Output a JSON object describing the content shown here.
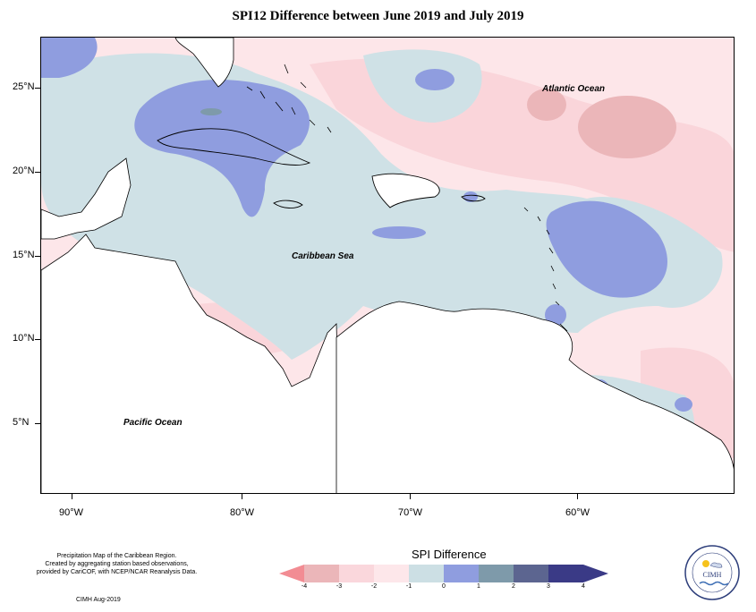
{
  "title": "SPI12 Difference between June 2019 and July 2019",
  "map": {
    "latitude_labels": [
      "25°N",
      "20°N",
      "15°N",
      "10°N",
      "5°N"
    ],
    "longitude_labels": [
      "90°W",
      "80°W",
      "70°W",
      "60°W"
    ],
    "places": {
      "atlantic": "Atlantic Ocean",
      "caribbean": "Caribbean Sea",
      "pacific": "Pacific Ocean"
    }
  },
  "legend": {
    "title": "SPI Difference",
    "ticks": [
      "-4",
      "-3",
      "-2",
      "-1",
      "0",
      "1",
      "2",
      "3",
      "4"
    ],
    "colors": [
      "#f28c93",
      "#ebb6b9",
      "#fad7dc",
      "#fde7ea",
      "#ccdfe4",
      "#8f9ddf",
      "#7e9aaa",
      "#5c6590",
      "#3a3a86"
    ]
  },
  "credits": {
    "line1": "Precipitation Map of the Caribbean Region.",
    "line2": "Created by aggregating station based observations,",
    "line3": "provided by CariCOF, with NCEP/NCAR Reanalysis Data.",
    "footer": "CIMH Aug-2019"
  },
  "logo": {
    "text": "CIMH",
    "colors": {
      "sun": "#f6c21c",
      "wave": "#3e6fb5",
      "text": "#2c3d7a"
    }
  }
}
